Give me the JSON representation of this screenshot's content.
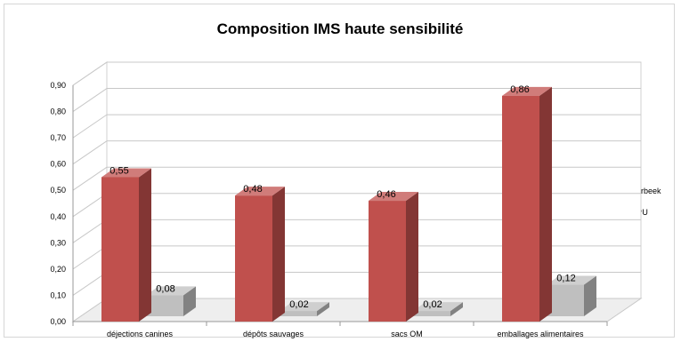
{
  "chart_data": {
    "type": "bar",
    "title": "Composition IMS haute sensibilité",
    "categories": [
      "déjections canines",
      "dépôts sauvages",
      "sacs OM",
      "emballages alimentaires"
    ],
    "series": [
      {
        "name": "Etterbeek",
        "values": [
          0.55,
          0.48,
          0.46,
          0.86
        ],
        "labels": [
          "0,55",
          "0,48",
          "0,46",
          "0,86"
        ],
        "color": "#c0504d"
      },
      {
        "name": "AVPU",
        "values": [
          0.08,
          0.02,
          0.02,
          0.12
        ],
        "labels": [
          "0,08",
          "0,02",
          "0,02",
          "0,12"
        ],
        "color": "#bfbfbf"
      }
    ],
    "ylim": [
      0,
      0.9
    ],
    "yticks": [
      "0,00",
      "0,10",
      "0,20",
      "0,30",
      "0,40",
      "0,50",
      "0,60",
      "0,70",
      "0,80",
      "0,90"
    ],
    "grid": true,
    "legend_position": "right",
    "style": "3d-column"
  }
}
